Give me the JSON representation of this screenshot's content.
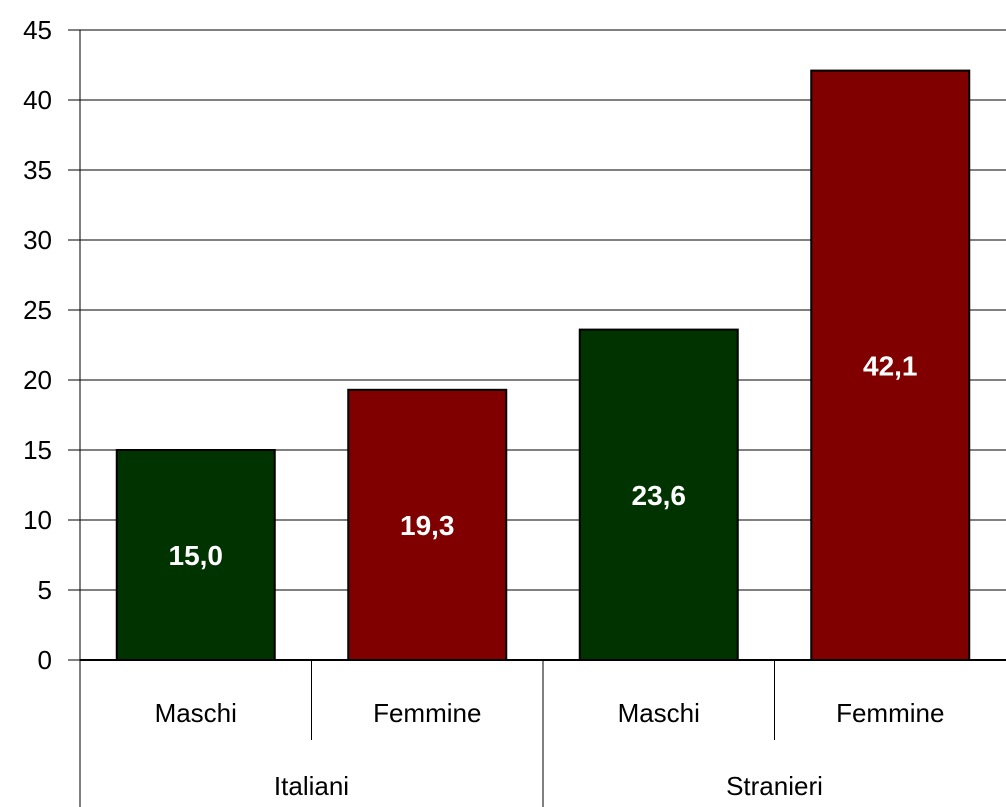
{
  "chart_data": {
    "type": "bar",
    "groups": [
      {
        "label": "Italiani",
        "categories": [
          "Maschi",
          "Femmine"
        ]
      },
      {
        "label": "Stranieri",
        "categories": [
          "Maschi",
          "Femmine"
        ]
      }
    ],
    "values": [
      15.0,
      19.3,
      23.6,
      42.1
    ],
    "data_labels": [
      "15,0",
      "19,3",
      "23,6",
      "42,1"
    ],
    "colors": [
      "#003300",
      "#800000",
      "#003300",
      "#800000"
    ],
    "y_ticks": [
      "0",
      "5",
      "10",
      "15",
      "20",
      "25",
      "30",
      "35",
      "40",
      "45"
    ],
    "ylim": [
      0,
      45
    ],
    "grid": true
  }
}
